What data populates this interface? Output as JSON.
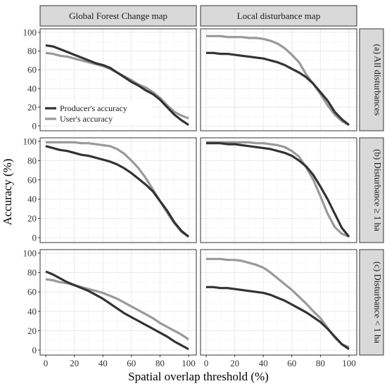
{
  "chart_data": {
    "type": "line",
    "xlabel": "Spatial overlap threshold (%)",
    "ylabel": "Accuracy (%)",
    "xlim": [
      0,
      100
    ],
    "ylim": [
      0,
      100
    ],
    "x_ticks": [
      0,
      20,
      40,
      60,
      80,
      100
    ],
    "y_ticks": [
      0,
      20,
      40,
      60,
      80,
      100
    ],
    "grid": true,
    "legend_placement": "bottom-left of top-left panel",
    "columns": [
      "Global Forest Change map",
      "Local disturbance map"
    ],
    "rows": [
      "(a) All disturbances",
      "(b) Disturbance ≥ 1 ha",
      "(c) Disturbance < 1 ha"
    ],
    "legend": [
      "Producer's accuracy",
      "User's accuracy"
    ],
    "colors": {
      "producer": "#333333",
      "user": "#999999",
      "strip_fill": "#d9d9d9",
      "grid": "#ebebeb",
      "panel_border": "#333333"
    },
    "panels": [
      {
        "row": 0,
        "col": 0,
        "series": [
          {
            "name": "Producer's accuracy",
            "x": [
              0,
              5,
              10,
              15,
              20,
              25,
              30,
              35,
              40,
              45,
              50,
              55,
              60,
              65,
              70,
              75,
              80,
              85,
              90,
              95,
              100
            ],
            "y": [
              86,
              85,
              82,
              79,
              76,
              73,
              70,
              67,
              65,
              62,
              57,
              52,
              47,
              43,
              38,
              34,
              28,
              20,
              12,
              6,
              1
            ]
          },
          {
            "name": "User's accuracy",
            "x": [
              0,
              5,
              10,
              15,
              20,
              25,
              30,
              35,
              40,
              45,
              50,
              55,
              60,
              65,
              70,
              75,
              80,
              85,
              90,
              95,
              100
            ],
            "y": [
              78,
              77,
              75,
              74,
              72,
              70,
              68,
              66,
              64,
              61,
              57,
              53,
              49,
              44,
              41,
              36,
              30,
              22,
              15,
              11,
              8
            ]
          }
        ]
      },
      {
        "row": 0,
        "col": 1,
        "series": [
          {
            "name": "Producer's accuracy",
            "x": [
              0,
              5,
              10,
              15,
              20,
              25,
              30,
              35,
              40,
              45,
              50,
              55,
              60,
              65,
              70,
              75,
              80,
              85,
              90,
              95,
              100
            ],
            "y": [
              78,
              78,
              77,
              77,
              76,
              75,
              74,
              73,
              72,
              70,
              68,
              65,
              61,
              57,
              52,
              45,
              36,
              27,
              15,
              7,
              1
            ]
          },
          {
            "name": "User's accuracy",
            "x": [
              0,
              5,
              10,
              15,
              20,
              25,
              30,
              35,
              40,
              45,
              50,
              55,
              60,
              65,
              70,
              75,
              80,
              85,
              90,
              95,
              100
            ],
            "y": [
              96,
              96,
              96,
              95,
              95,
              95,
              94,
              94,
              93,
              91,
              88,
              83,
              76,
              68,
              55,
              45,
              34,
              22,
              12,
              5,
              1
            ]
          }
        ]
      },
      {
        "row": 1,
        "col": 0,
        "series": [
          {
            "name": "Producer's accuracy",
            "x": [
              0,
              5,
              10,
              15,
              20,
              25,
              30,
              35,
              40,
              45,
              50,
              55,
              60,
              65,
              70,
              75,
              80,
              85,
              90,
              95,
              100
            ],
            "y": [
              95,
              93,
              91,
              90,
              88,
              86,
              85,
              83,
              81,
              79,
              76,
              72,
              67,
              61,
              55,
              48,
              38,
              28,
              16,
              7,
              1
            ]
          },
          {
            "name": "User's accuracy",
            "x": [
              0,
              5,
              10,
              15,
              20,
              25,
              30,
              35,
              40,
              45,
              50,
              55,
              60,
              65,
              70,
              75,
              80,
              85,
              90,
              95,
              100
            ],
            "y": [
              99,
              99,
              99,
              99,
              99,
              98,
              98,
              97,
              96,
              95,
              92,
              87,
              80,
              72,
              62,
              50,
              38,
              26,
              15,
              6,
              1
            ]
          }
        ]
      },
      {
        "row": 1,
        "col": 1,
        "series": [
          {
            "name": "Producer's accuracy",
            "x": [
              0,
              5,
              10,
              15,
              20,
              25,
              30,
              35,
              40,
              45,
              50,
              55,
              60,
              65,
              70,
              75,
              80,
              85,
              90,
              95,
              100
            ],
            "y": [
              98,
              98,
              98,
              97,
              97,
              96,
              95,
              94,
              93,
              92,
              90,
              88,
              85,
              80,
              74,
              65,
              53,
              40,
              25,
              10,
              1
            ]
          },
          {
            "name": "User's accuracy",
            "x": [
              0,
              5,
              10,
              15,
              20,
              25,
              30,
              35,
              40,
              45,
              50,
              55,
              60,
              65,
              70,
              75,
              80,
              85,
              90,
              95,
              100
            ],
            "y": [
              99,
              99,
              99,
              99,
              99,
              99,
              99,
              98,
              98,
              97,
              96,
              94,
              90,
              84,
              73,
              60,
              43,
              25,
              11,
              4,
              1
            ]
          }
        ]
      },
      {
        "row": 2,
        "col": 0,
        "series": [
          {
            "name": "Producer's accuracy",
            "x": [
              0,
              5,
              10,
              15,
              20,
              25,
              30,
              35,
              40,
              45,
              50,
              55,
              60,
              65,
              70,
              75,
              80,
              85,
              90,
              95,
              100
            ],
            "y": [
              81,
              78,
              74,
              70,
              67,
              64,
              61,
              57,
              53,
              48,
              43,
              38,
              34,
              30,
              26,
              22,
              18,
              14,
              9,
              5,
              1
            ]
          },
          {
            "name": "User's accuracy",
            "x": [
              0,
              5,
              10,
              15,
              20,
              25,
              30,
              35,
              40,
              45,
              50,
              55,
              60,
              65,
              70,
              75,
              80,
              85,
              90,
              95,
              100
            ],
            "y": [
              73,
              72,
              70,
              69,
              67,
              65,
              63,
              61,
              59,
              56,
              53,
              49,
              45,
              41,
              37,
              33,
              28,
              24,
              20,
              16,
              11
            ]
          }
        ]
      },
      {
        "row": 2,
        "col": 1,
        "series": [
          {
            "name": "Producer's accuracy",
            "x": [
              0,
              5,
              10,
              15,
              20,
              25,
              30,
              35,
              40,
              45,
              50,
              55,
              60,
              65,
              70,
              75,
              80,
              85,
              90,
              95,
              100
            ],
            "y": [
              65,
              65,
              64,
              64,
              63,
              62,
              61,
              60,
              59,
              57,
              54,
              51,
              47,
              43,
              39,
              34,
              29,
              22,
              14,
              6,
              1
            ]
          },
          {
            "name": "User's accuracy",
            "x": [
              0,
              5,
              10,
              15,
              20,
              25,
              30,
              35,
              40,
              45,
              50,
              55,
              60,
              65,
              70,
              75,
              80,
              85,
              90,
              95,
              100
            ],
            "y": [
              94,
              94,
              94,
              93,
              93,
              92,
              90,
              88,
              85,
              80,
              74,
              68,
              62,
              55,
              48,
              40,
              33,
              23,
              13,
              6,
              3
            ]
          }
        ]
      }
    ]
  }
}
